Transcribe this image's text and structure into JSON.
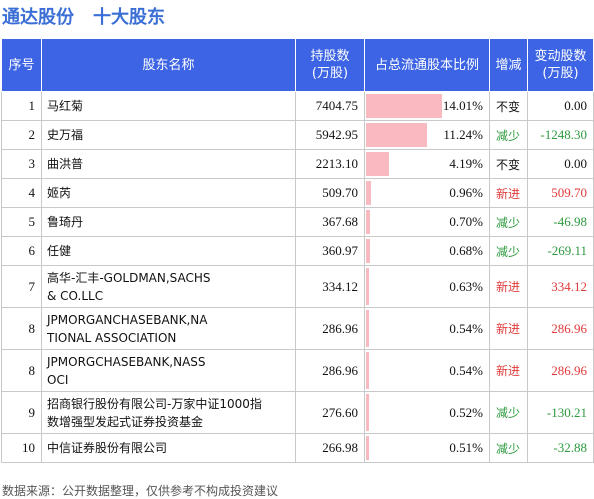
{
  "header": {
    "company": "通达股份",
    "section": "十大股东"
  },
  "table": {
    "columns": [
      "序号",
      "股东名称",
      "持股数\n(万股)",
      "占总流通股本比例",
      "增减",
      "变动股数\n(万股)"
    ],
    "rows": [
      {
        "rank": "1",
        "name": "马红菊",
        "shares": "7404.75",
        "ratio": "14.01%",
        "ratio_value": 14.01,
        "change": "不变",
        "change_color": "black",
        "delta": "0.00",
        "delta_color": "black",
        "lines": 1
      },
      {
        "rank": "2",
        "name": "史万福",
        "shares": "5942.95",
        "ratio": "11.24%",
        "ratio_value": 11.24,
        "change": "减少",
        "change_color": "green",
        "delta": "-1248.30",
        "delta_color": "green",
        "lines": 1
      },
      {
        "rank": "3",
        "name": "曲洪普",
        "shares": "2213.10",
        "ratio": "4.19%",
        "ratio_value": 4.19,
        "change": "不变",
        "change_color": "black",
        "delta": "0.00",
        "delta_color": "black",
        "lines": 1
      },
      {
        "rank": "4",
        "name": "姬芮",
        "shares": "509.70",
        "ratio": "0.96%",
        "ratio_value": 0.96,
        "change": "新进",
        "change_color": "red",
        "delta": "509.70",
        "delta_color": "red",
        "lines": 1
      },
      {
        "rank": "5",
        "name": "鲁琦丹",
        "shares": "367.68",
        "ratio": "0.70%",
        "ratio_value": 0.7,
        "change": "减少",
        "change_color": "green",
        "delta": "-46.98",
        "delta_color": "green",
        "lines": 1
      },
      {
        "rank": "6",
        "name": "任健",
        "shares": "360.97",
        "ratio": "0.68%",
        "ratio_value": 0.68,
        "change": "减少",
        "change_color": "green",
        "delta": "-269.11",
        "delta_color": "green",
        "lines": 1
      },
      {
        "rank": "7",
        "name": "高华-汇丰-GOLDMAN,SACHS\n& CO.LLC",
        "shares": "334.12",
        "ratio": "0.63%",
        "ratio_value": 0.63,
        "change": "新进",
        "change_color": "red",
        "delta": "334.12",
        "delta_color": "red",
        "lines": 2
      },
      {
        "rank": "8",
        "name": "JPMORGANCHASEBANK,NA\nTIONAL ASSOCIATION",
        "shares": "286.96",
        "ratio": "0.54%",
        "ratio_value": 0.54,
        "change": "新进",
        "change_color": "red",
        "delta": "286.96",
        "delta_color": "red",
        "lines": 2
      },
      {
        "rank": "8",
        "name": "JPMORGCHASEBANK,NASS\nOCI",
        "shares": "286.96",
        "ratio": "0.54%",
        "ratio_value": 0.54,
        "change": "新进",
        "change_color": "red",
        "delta": "286.96",
        "delta_color": "red",
        "lines": 2
      },
      {
        "rank": "9",
        "name": "招商银行股份有限公司-万家中证1000指\n数增强型发起式证券投资基金",
        "shares": "276.60",
        "ratio": "0.52%",
        "ratio_value": 0.52,
        "change": "减少",
        "change_color": "green",
        "delta": "-130.21",
        "delta_color": "green",
        "lines": 2
      },
      {
        "rank": "10",
        "name": "中信证券股份有限公司",
        "shares": "266.98",
        "ratio": "0.51%",
        "ratio_value": 0.51,
        "change": "减少",
        "change_color": "green",
        "delta": "-32.88",
        "delta_color": "green",
        "lines": 1
      }
    ]
  },
  "footer": {
    "source": "数据来源：公开数据整理，仅供参考不构成投资建议"
  },
  "colors": {
    "header_bg": "#3d64e4",
    "title": "#3b6fd6",
    "bar": "#f8b9c1",
    "increase": "#e03a3a",
    "decrease": "#2c9a3e"
  }
}
